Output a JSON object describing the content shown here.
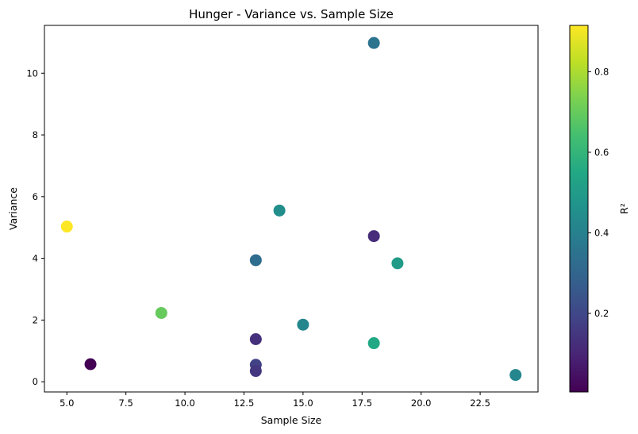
{
  "chart_data": {
    "type": "scatter",
    "title": "Hunger - Variance vs. Sample Size",
    "xlabel": "Sample Size",
    "ylabel": "Variance",
    "xlim": [
      4.05,
      24.95
    ],
    "ylim": [
      -0.33,
      11.55
    ],
    "xticks": [
      5.0,
      7.5,
      10.0,
      12.5,
      15.0,
      17.5,
      20.0,
      22.5
    ],
    "xtick_labels": [
      "5.0",
      "7.5",
      "10.0",
      "12.5",
      "15.0",
      "17.5",
      "20.0",
      "22.5"
    ],
    "yticks": [
      0,
      2,
      4,
      6,
      8,
      10
    ],
    "ytick_labels": [
      "0",
      "2",
      "4",
      "6",
      "8",
      "10"
    ],
    "grid": false,
    "colormap": "viridis",
    "colorbar": {
      "label": "R²",
      "range": [
        0.005,
        0.915
      ],
      "ticks": [
        0.2,
        0.4,
        0.6,
        0.8
      ],
      "tick_labels": [
        "0.2",
        "0.4",
        "0.6",
        "0.8"
      ]
    },
    "points": [
      {
        "x": 5,
        "y": 5.03,
        "r2": 0.915
      },
      {
        "x": 6,
        "y": 0.57,
        "r2": 0.005
      },
      {
        "x": 9,
        "y": 2.23,
        "r2": 0.7
      },
      {
        "x": 13,
        "y": 3.94,
        "r2": 0.33
      },
      {
        "x": 13,
        "y": 1.38,
        "r2": 0.13
      },
      {
        "x": 13,
        "y": 0.55,
        "r2": 0.18
      },
      {
        "x": 13,
        "y": 0.35,
        "r2": 0.15
      },
      {
        "x": 14,
        "y": 5.55,
        "r2": 0.45
      },
      {
        "x": 15,
        "y": 1.85,
        "r2": 0.42
      },
      {
        "x": 18,
        "y": 10.98,
        "r2": 0.35
      },
      {
        "x": 18,
        "y": 4.72,
        "r2": 0.12
      },
      {
        "x": 18,
        "y": 1.25,
        "r2": 0.55
      },
      {
        "x": 19,
        "y": 3.84,
        "r2": 0.5
      },
      {
        "x": 24,
        "y": 0.22,
        "r2": 0.42
      }
    ]
  }
}
